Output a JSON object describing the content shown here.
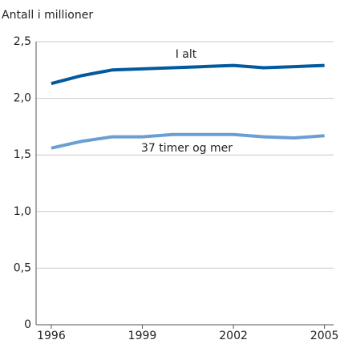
{
  "chart_data": {
    "type": "line",
    "title": "Antall i millioner",
    "x": [
      1996,
      1997,
      1998,
      1999,
      2000,
      2001,
      2002,
      2003,
      2004,
      2005
    ],
    "series": [
      {
        "name": "I alt",
        "color": "#005a9c",
        "values": [
          2.13,
          2.2,
          2.25,
          2.26,
          2.27,
          2.28,
          2.29,
          2.27,
          2.28,
          2.29
        ]
      },
      {
        "name": "37 timer og mer",
        "color": "#6b9fd3",
        "values": [
          1.56,
          1.62,
          1.66,
          1.66,
          1.68,
          1.68,
          1.68,
          1.66,
          1.65,
          1.67
        ]
      }
    ],
    "xlim": [
      1995.5,
      2005.3
    ],
    "xticks": [
      1996,
      1999,
      2002,
      2005
    ],
    "ylim": [
      0,
      2.5
    ],
    "yticks": [
      0,
      {
        "value": 0.5,
        "label": "0,5"
      },
      {
        "value": 1,
        "label": "1,0"
      },
      {
        "value": 1.5,
        "label": "1,5"
      },
      {
        "value": 2,
        "label": "2,0"
      },
      {
        "value": 2.5,
        "label": "2,5"
      }
    ],
    "grid": true
  }
}
